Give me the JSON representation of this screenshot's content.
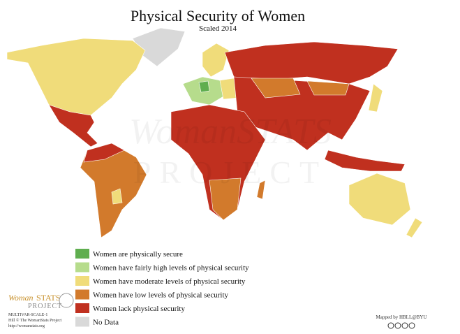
{
  "header": {
    "title": "Physical Security of Women",
    "subtitle": "Scaled 2014"
  },
  "legend": [
    {
      "label": "Women are physically secure",
      "color": "#5fae4f"
    },
    {
      "label": "Women have fairly high levels of physical security",
      "color": "#b6dc8c"
    },
    {
      "label": "Women have moderate levels of physical security",
      "color": "#f0dc7a"
    },
    {
      "label": "Women have low levels of physical security",
      "color": "#d27a2c"
    },
    {
      "label": "Women lack physical security",
      "color": "#c0301f"
    },
    {
      "label": "No Data",
      "color": "#d9d9d9"
    }
  ],
  "logo": {
    "woman": "Woman",
    "stats": "STATS",
    "project": "PROJECT"
  },
  "credits": [
    "MULTIVAR-SCALE-1",
    "Hill © The WomanStats Project",
    "http://womanstats.org"
  ],
  "mapped_by": "Mapped by HBLL@BYU",
  "watermark": {
    "woman": "WomanSTATS",
    "project": "PROJECT"
  }
}
